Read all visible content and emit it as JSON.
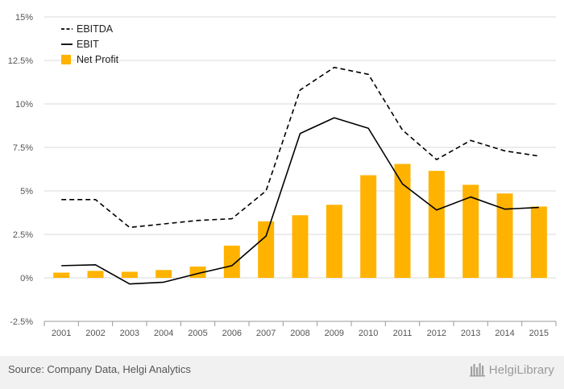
{
  "chart_data": {
    "type": "bar",
    "categories": [
      "2001",
      "2002",
      "2003",
      "2004",
      "2005",
      "2006",
      "2007",
      "2008",
      "2009",
      "2010",
      "2011",
      "2012",
      "2013",
      "2014",
      "2015"
    ],
    "series": [
      {
        "name": "EBITDA",
        "kind": "line",
        "style": "dashed",
        "color": "#000000",
        "values": [
          4.5,
          4.5,
          2.9,
          3.1,
          3.3,
          3.4,
          5.0,
          10.8,
          12.1,
          11.7,
          8.5,
          6.8,
          7.9,
          7.3,
          7.0
        ]
      },
      {
        "name": "EBIT",
        "kind": "line",
        "style": "solid",
        "color": "#000000",
        "values": [
          0.7,
          0.75,
          -0.35,
          -0.25,
          0.25,
          0.7,
          2.4,
          8.3,
          9.2,
          8.6,
          5.4,
          3.9,
          4.65,
          3.95,
          4.05
        ]
      },
      {
        "name": "Net Profit",
        "kind": "bar",
        "color": "#FFB300",
        "values": [
          0.3,
          0.4,
          0.35,
          0.45,
          0.65,
          1.85,
          3.25,
          3.6,
          4.2,
          5.9,
          6.55,
          6.15,
          5.35,
          4.85,
          4.1
        ]
      }
    ],
    "yticks": [
      "-2.5%",
      "0%",
      "2.5%",
      "5%",
      "7.5%",
      "10%",
      "12.5%",
      "15%"
    ],
    "ylim": [
      -2.5,
      15
    ],
    "xlabel": "",
    "ylabel": "",
    "grid": true,
    "legend": "top-left"
  },
  "footer": {
    "source": "Source: Company Data, Helgi Analytics",
    "brand": "HelgiLibrary"
  }
}
